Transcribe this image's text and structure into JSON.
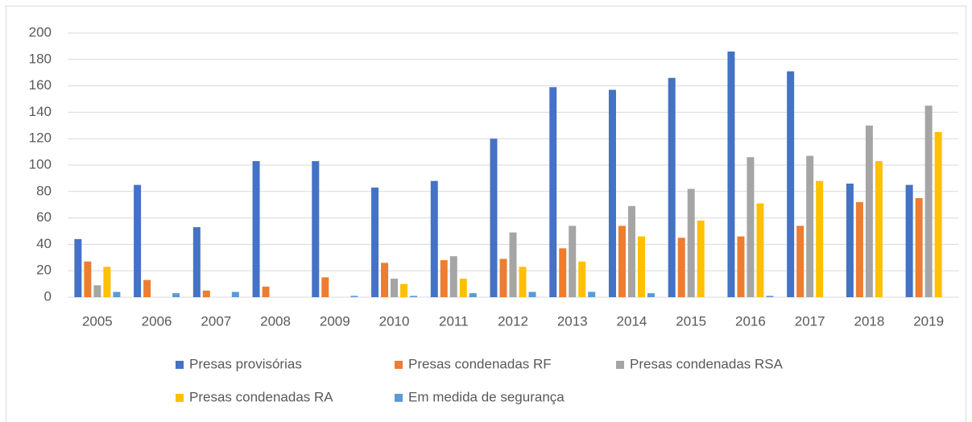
{
  "chart_data": {
    "type": "bar",
    "categories": [
      "2005",
      "2006",
      "2007",
      "2008",
      "2009",
      "2010",
      "2011",
      "2012",
      "2013",
      "2014",
      "2015",
      "2016",
      "2017",
      "2018",
      "2019"
    ],
    "series": [
      {
        "name": "Presas provisórias",
        "color": "#4472c4",
        "values": [
          44,
          85,
          53,
          103,
          103,
          83,
          88,
          120,
          159,
          157,
          166,
          186,
          171,
          86,
          85
        ]
      },
      {
        "name": "Presas condenadas RF",
        "color": "#ed7d31",
        "values": [
          27,
          13,
          5,
          8,
          15,
          26,
          28,
          29,
          37,
          54,
          45,
          46,
          54,
          72,
          75
        ]
      },
      {
        "name": "Presas condenadas RSA",
        "color": "#a5a5a5",
        "values": [
          9,
          0,
          0,
          0,
          0,
          14,
          31,
          49,
          54,
          69,
          82,
          106,
          107,
          130,
          145
        ]
      },
      {
        "name": "Presas condenadas RA",
        "color": "#ffc000",
        "values": [
          23,
          0,
          0,
          0,
          0,
          10,
          14,
          23,
          27,
          46,
          58,
          71,
          88,
          103,
          125
        ]
      },
      {
        "name": "Em medida de segurança",
        "color": "#5b9bd5",
        "values": [
          4,
          3,
          4,
          0,
          1,
          1,
          3,
          4,
          4,
          3,
          0,
          1,
          0,
          0,
          0
        ]
      }
    ],
    "ylim": [
      0,
      200
    ],
    "yticks": [
      0,
      20,
      40,
      60,
      80,
      100,
      120,
      140,
      160,
      180,
      200
    ],
    "grid": true,
    "legend": "bottom"
  }
}
